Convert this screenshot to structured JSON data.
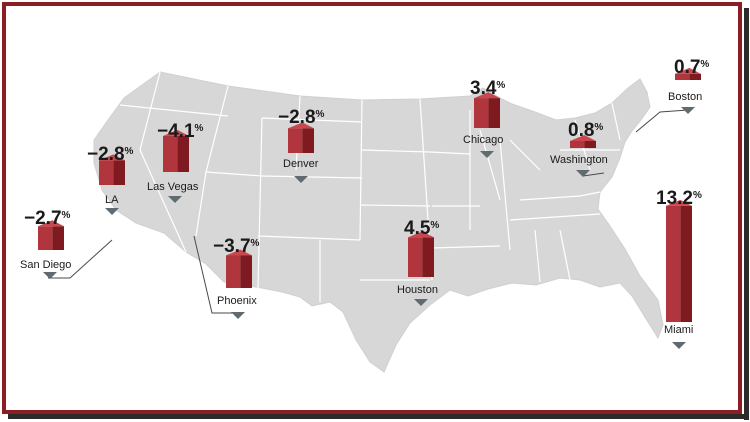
{
  "colors": {
    "border": "#8c1d24",
    "land": "#d7d7d7",
    "state_line": "#ffffff",
    "bar_front": "#b0353c",
    "bar_side": "#7e1a20",
    "bar_top": "#c9474e",
    "marker": "#5f6b70",
    "leader": "#4a4a4a"
  },
  "cities": [
    {
      "name": "San Diego",
      "value": "−2.7",
      "unit": "%"
    },
    {
      "name": "LA",
      "value": "−2.8",
      "unit": "%"
    },
    {
      "name": "Las Vegas",
      "value": "−4.1",
      "unit": "%"
    },
    {
      "name": "Phoenix",
      "value": "−3.7",
      "unit": "%"
    },
    {
      "name": "Denver",
      "value": "−2.8",
      "unit": "%"
    },
    {
      "name": "Houston",
      "value": "4.5",
      "unit": "%"
    },
    {
      "name": "Chicago",
      "value": "3.4",
      "unit": "%"
    },
    {
      "name": "Washington",
      "value": "0.8",
      "unit": "%"
    },
    {
      "name": "Boston",
      "value": "0.7",
      "unit": "%"
    },
    {
      "name": "Miami",
      "value": "13.2",
      "unit": "%"
    }
  ]
}
